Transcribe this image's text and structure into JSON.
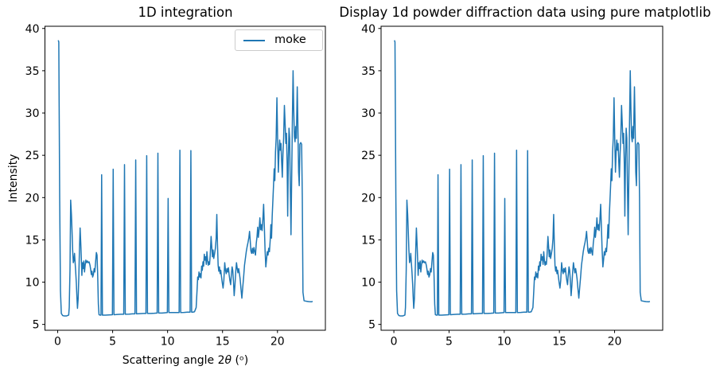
{
  "figure": {
    "kind": "matplotlib figure, two subplots",
    "background": "#ffffff",
    "text_color": "#000000",
    "spine_color": "#000000"
  },
  "chart_data": {
    "type": "line",
    "grid": false,
    "xlim": [
      -1.16,
      24.36
    ],
    "ylim": [
      4.31,
      40.26
    ],
    "xticks": [
      0,
      5,
      10,
      15,
      20
    ],
    "yticks": [
      5,
      10,
      15,
      20,
      25,
      30,
      35,
      40
    ],
    "charts": [
      {
        "title": "1D integration",
        "xlabel": "Scattering angle 2θ (ᵒ)",
        "xlabel_parts": {
          "prefix": "Scattering angle 2",
          "theta": "θ",
          "suffix": " (ᵒ)"
        },
        "ylabel": "Intensity",
        "legend": {
          "visible": true,
          "location": "upper right",
          "entries": [
            "moke"
          ]
        },
        "series_indices": [
          0
        ]
      },
      {
        "title": "Display 1d powder diffraction data using pure matplotlib",
        "xlabel": "",
        "ylabel": "",
        "legend": {
          "visible": false,
          "entries": []
        },
        "series_indices": [
          0
        ]
      }
    ],
    "series": [
      {
        "name": "moke",
        "color": "#1f77b4",
        "linewidth": 1.5,
        "points": [
          [
            0.05,
            38.6
          ],
          [
            0.1,
            38.4
          ],
          [
            0.18,
            20.0
          ],
          [
            0.25,
            9.0
          ],
          [
            0.33,
            6.3
          ],
          [
            0.45,
            6.05
          ],
          [
            0.6,
            6.0
          ],
          [
            0.8,
            6.0
          ],
          [
            1.0,
            6.1
          ],
          [
            1.05,
            7.0
          ],
          [
            1.12,
            11.5
          ],
          [
            1.18,
            19.7
          ],
          [
            1.25,
            18.0
          ],
          [
            1.3,
            16.2
          ],
          [
            1.36,
            13.8
          ],
          [
            1.42,
            12.3
          ],
          [
            1.48,
            12.6
          ],
          [
            1.53,
            13.4
          ],
          [
            1.58,
            12.4
          ],
          [
            1.64,
            11.2
          ],
          [
            1.7,
            9.8
          ],
          [
            1.75,
            8.2
          ],
          [
            1.8,
            6.9
          ],
          [
            1.86,
            8.0
          ],
          [
            1.92,
            10.5
          ],
          [
            1.98,
            13.8
          ],
          [
            2.04,
            16.4
          ],
          [
            2.1,
            14.6
          ],
          [
            2.15,
            12.8
          ],
          [
            2.2,
            10.8
          ],
          [
            2.26,
            12.3
          ],
          [
            2.32,
            11.6
          ],
          [
            2.38,
            12.5
          ],
          [
            2.44,
            11.2
          ],
          [
            2.5,
            12.0
          ],
          [
            2.56,
            12.6
          ],
          [
            2.62,
            12.3
          ],
          [
            2.7,
            12.5
          ],
          [
            2.78,
            12.3
          ],
          [
            2.86,
            12.4
          ],
          [
            2.94,
            12.0
          ],
          [
            3.0,
            11.5
          ],
          [
            3.06,
            10.9
          ],
          [
            3.12,
            11.3
          ],
          [
            3.18,
            10.6
          ],
          [
            3.25,
            10.9
          ],
          [
            3.32,
            11.6
          ],
          [
            3.38,
            11.2
          ],
          [
            3.45,
            12.4
          ],
          [
            3.52,
            13.5
          ],
          [
            3.58,
            13.2
          ],
          [
            3.64,
            10.8
          ],
          [
            3.7,
            7.4
          ],
          [
            3.76,
            6.15
          ],
          [
            3.85,
            6.1
          ],
          [
            3.94,
            6.1
          ],
          [
            4.0,
            22.7
          ],
          [
            4.07,
            6.1
          ],
          [
            4.35,
            6.1
          ],
          [
            4.65,
            6.12
          ],
          [
            4.98,
            6.15
          ],
          [
            5.05,
            23.35
          ],
          [
            5.12,
            6.15
          ],
          [
            5.45,
            6.18
          ],
          [
            5.75,
            6.2
          ],
          [
            6.01,
            6.2
          ],
          [
            6.08,
            23.9
          ],
          [
            6.15,
            6.2
          ],
          [
            6.5,
            6.22
          ],
          [
            6.8,
            6.25
          ],
          [
            7.03,
            6.25
          ],
          [
            7.1,
            24.45
          ],
          [
            7.17,
            6.25
          ],
          [
            7.5,
            6.28
          ],
          [
            7.8,
            6.3
          ],
          [
            8.03,
            6.3
          ],
          [
            8.1,
            24.95
          ],
          [
            8.17,
            6.3
          ],
          [
            8.5,
            6.3
          ],
          [
            8.8,
            6.32
          ],
          [
            9.05,
            6.35
          ],
          [
            9.12,
            25.25
          ],
          [
            9.19,
            6.35
          ],
          [
            9.5,
            6.35
          ],
          [
            9.8,
            6.38
          ],
          [
            9.98,
            6.4
          ],
          [
            10.05,
            19.9
          ],
          [
            10.12,
            6.4
          ],
          [
            10.45,
            6.4
          ],
          [
            10.75,
            6.4
          ],
          [
            11.05,
            6.4
          ],
          [
            11.12,
            25.6
          ],
          [
            11.19,
            6.4
          ],
          [
            11.5,
            6.42
          ],
          [
            11.8,
            6.45
          ],
          [
            12.05,
            6.45
          ],
          [
            12.12,
            25.55
          ],
          [
            12.19,
            6.45
          ],
          [
            12.3,
            6.45
          ],
          [
            12.45,
            6.5
          ],
          [
            12.6,
            7.0
          ],
          [
            12.68,
            9.0
          ],
          [
            12.74,
            10.6
          ],
          [
            12.8,
            10.3
          ],
          [
            12.86,
            11.2
          ],
          [
            12.92,
            10.6
          ],
          [
            12.98,
            11.0
          ],
          [
            13.04,
            10.5
          ],
          [
            13.1,
            11.9
          ],
          [
            13.16,
            11.4
          ],
          [
            13.22,
            12.4
          ],
          [
            13.28,
            11.9
          ],
          [
            13.34,
            13.3
          ],
          [
            13.4,
            12.6
          ],
          [
            13.46,
            13.0
          ],
          [
            13.52,
            12.1
          ],
          [
            13.58,
            13.6
          ],
          [
            13.64,
            12.6
          ],
          [
            13.7,
            12.0
          ],
          [
            13.76,
            12.4
          ],
          [
            13.82,
            12.1
          ],
          [
            13.88,
            13.2
          ],
          [
            13.96,
            15.4
          ],
          [
            14.02,
            14.2
          ],
          [
            14.08,
            13.0
          ],
          [
            14.14,
            13.8
          ],
          [
            14.2,
            12.8
          ],
          [
            14.28,
            13.4
          ],
          [
            14.35,
            14.0
          ],
          [
            14.42,
            15.2
          ],
          [
            14.48,
            18.0
          ],
          [
            14.54,
            14.5
          ],
          [
            14.6,
            12.0
          ],
          [
            14.66,
            11.3
          ],
          [
            14.72,
            11.8
          ],
          [
            14.78,
            11.0
          ],
          [
            14.84,
            11.4
          ],
          [
            14.9,
            10.7
          ],
          [
            14.97,
            10.0
          ],
          [
            15.05,
            9.3
          ],
          [
            15.12,
            10.2
          ],
          [
            15.2,
            12.3
          ],
          [
            15.27,
            11.4
          ],
          [
            15.34,
            11.0
          ],
          [
            15.4,
            11.6
          ],
          [
            15.47,
            11.2
          ],
          [
            15.54,
            11.7
          ],
          [
            15.6,
            10.9
          ],
          [
            15.67,
            10.2
          ],
          [
            15.74,
            9.7
          ],
          [
            15.8,
            10.8
          ],
          [
            15.87,
            11.8
          ],
          [
            15.93,
            11.4
          ],
          [
            16.0,
            10.0
          ],
          [
            16.06,
            8.4
          ],
          [
            16.13,
            9.6
          ],
          [
            16.2,
            11.2
          ],
          [
            16.27,
            12.3
          ],
          [
            16.34,
            11.6
          ],
          [
            16.4,
            11.1
          ],
          [
            16.47,
            11.6
          ],
          [
            16.54,
            11.0
          ],
          [
            16.6,
            10.4
          ],
          [
            16.68,
            9.2
          ],
          [
            16.76,
            8.1
          ],
          [
            16.84,
            9.4
          ],
          [
            16.92,
            10.6
          ],
          [
            17.0,
            12.0
          ],
          [
            17.08,
            12.8
          ],
          [
            17.16,
            13.6
          ],
          [
            17.24,
            14.2
          ],
          [
            17.32,
            14.7
          ],
          [
            17.4,
            15.3
          ],
          [
            17.46,
            16.0
          ],
          [
            17.52,
            14.9
          ],
          [
            17.58,
            13.7
          ],
          [
            17.65,
            13.4
          ],
          [
            17.72,
            14.0
          ],
          [
            17.79,
            13.4
          ],
          [
            17.86,
            14.1
          ],
          [
            17.93,
            13.6
          ],
          [
            18.0,
            13.2
          ],
          [
            18.07,
            14.6
          ],
          [
            18.14,
            15.4
          ],
          [
            18.2,
            16.5
          ],
          [
            18.26,
            15.3
          ],
          [
            18.33,
            16.2
          ],
          [
            18.4,
            17.6
          ],
          [
            18.47,
            16.2
          ],
          [
            18.54,
            16.8
          ],
          [
            18.6,
            16.1
          ],
          [
            18.67,
            17.4
          ],
          [
            18.74,
            19.2
          ],
          [
            18.8,
            16.8
          ],
          [
            18.87,
            13.8
          ],
          [
            18.94,
            11.8
          ],
          [
            19.0,
            12.6
          ],
          [
            19.07,
            13.6
          ],
          [
            19.14,
            13.2
          ],
          [
            19.2,
            14.0
          ],
          [
            19.27,
            13.6
          ],
          [
            19.34,
            15.0
          ],
          [
            19.4,
            16.8
          ],
          [
            19.46,
            15.2
          ],
          [
            19.52,
            17.8
          ],
          [
            19.58,
            19.6
          ],
          [
            19.64,
            21.4
          ],
          [
            19.7,
            23.4
          ],
          [
            19.76,
            22.0
          ],
          [
            19.82,
            25.4
          ],
          [
            19.88,
            27.0
          ],
          [
            19.95,
            31.8
          ],
          [
            20.02,
            26.5
          ],
          [
            20.08,
            23.0
          ],
          [
            20.14,
            25.4
          ],
          [
            20.2,
            26.8
          ],
          [
            20.26,
            25.6
          ],
          [
            20.32,
            26.4
          ],
          [
            20.38,
            24.2
          ],
          [
            20.44,
            22.4
          ],
          [
            20.5,
            25.2
          ],
          [
            20.56,
            27.0
          ],
          [
            20.63,
            30.9
          ],
          [
            20.7,
            28.6
          ],
          [
            20.76,
            26.4
          ],
          [
            20.82,
            27.6
          ],
          [
            20.88,
            24.0
          ],
          [
            20.93,
            17.8
          ],
          [
            20.99,
            24.6
          ],
          [
            21.05,
            28.2
          ],
          [
            21.11,
            27.0
          ],
          [
            21.17,
            21.0
          ],
          [
            21.23,
            15.6
          ],
          [
            21.3,
            23.0
          ],
          [
            21.36,
            29.5
          ],
          [
            21.42,
            35.0
          ],
          [
            21.48,
            30.5
          ],
          [
            21.54,
            27.2
          ],
          [
            21.6,
            26.6
          ],
          [
            21.66,
            28.4
          ],
          [
            21.72,
            27.0
          ],
          [
            21.8,
            33.1
          ],
          [
            21.86,
            28.5
          ],
          [
            21.92,
            23.0
          ],
          [
            21.98,
            21.4
          ],
          [
            22.04,
            26.3
          ],
          [
            22.12,
            26.5
          ],
          [
            22.2,
            26.3
          ],
          [
            22.26,
            20.0
          ],
          [
            22.32,
            8.8
          ],
          [
            22.42,
            7.8
          ],
          [
            22.6,
            7.75
          ],
          [
            22.85,
            7.7
          ],
          [
            23.1,
            7.68
          ],
          [
            23.2,
            7.72
          ]
        ]
      }
    ]
  }
}
